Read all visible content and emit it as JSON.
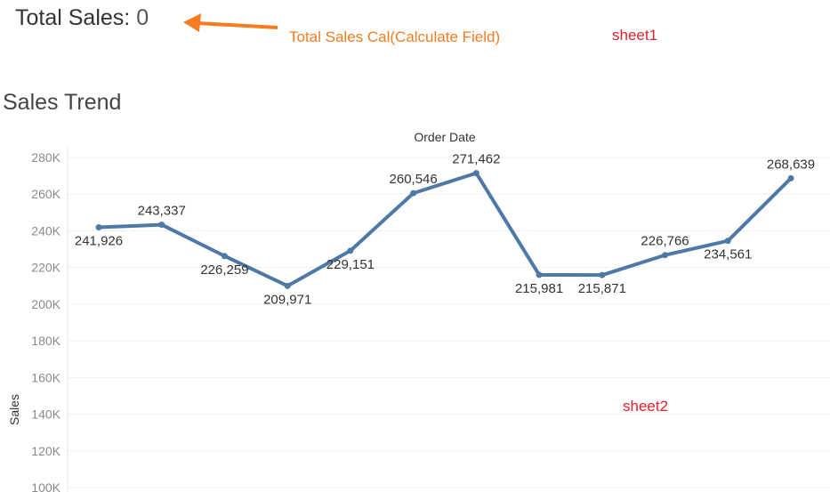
{
  "kpi": {
    "label": "Total Sales",
    "separator": ": ",
    "value": "0"
  },
  "annotations": {
    "calc_field": {
      "text": "Total Sales Cal(Calculate Field)",
      "color": "#f57c1f"
    },
    "sheet1": {
      "text": "sheet1",
      "color": "#e0202b"
    },
    "sheet2": {
      "text": "sheet2",
      "color": "#e0202b"
    }
  },
  "chart_data": {
    "type": "line",
    "title": "Sales Trend",
    "xlabel": "Order Date",
    "ylabel": "Sales",
    "ylim": [
      100000,
      280000
    ],
    "yticks": [
      {
        "value": 280000,
        "label": "280K"
      },
      {
        "value": 260000,
        "label": "260K"
      },
      {
        "value": 240000,
        "label": "240K"
      },
      {
        "value": 220000,
        "label": "220K"
      },
      {
        "value": 200000,
        "label": "200K"
      },
      {
        "value": 180000,
        "label": "180K"
      },
      {
        "value": 160000,
        "label": "160K"
      },
      {
        "value": 140000,
        "label": "140K"
      },
      {
        "value": 120000,
        "label": "120K"
      },
      {
        "value": 100000,
        "label": "100K"
      }
    ],
    "grid": true,
    "line_color": "#4e79a7",
    "series": [
      {
        "values": [
          241926,
          243337,
          226259,
          209971,
          229151,
          260546,
          271462,
          215981,
          215871,
          226766,
          234561,
          268639
        ],
        "labels": [
          "241,926",
          "243,337",
          "226,259",
          "209,971",
          "229,151",
          "260,546",
          "271,462",
          "215,981",
          "215,871",
          "226,766",
          "234,561",
          "268,639"
        ],
        "label_pos": [
          "below",
          "above",
          "below",
          "below",
          "below",
          "above",
          "above",
          "below",
          "below",
          "above",
          "below",
          "above"
        ]
      }
    ]
  }
}
